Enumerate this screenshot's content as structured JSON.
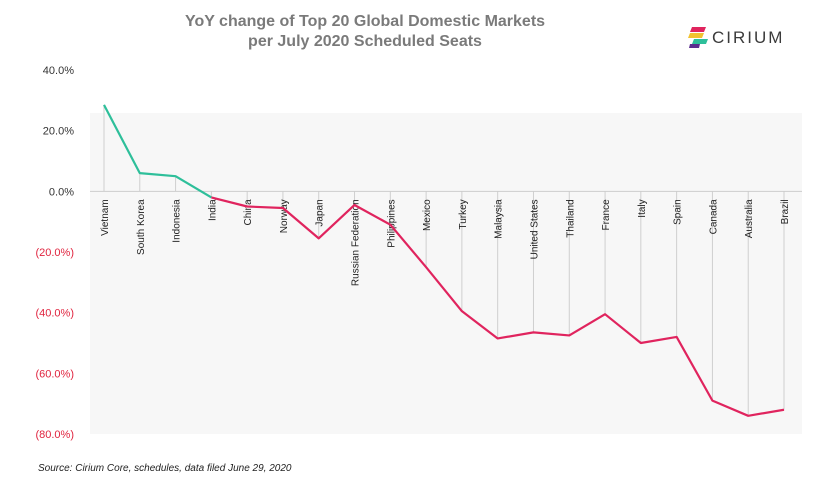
{
  "title_line1": "YoY change of Top 20 Global Domestic Markets",
  "title_line2": "per July 2020 Scheduled Seats",
  "logo_text": "CIRIUM",
  "source": "Source: Cirium Core, schedules, data filed June 29, 2020",
  "colors": {
    "positive": "#2ebf9a",
    "negative": "#e0245e",
    "plot_bg": "#f7f7f7",
    "neg_tick": "#e0243f"
  },
  "chart_data": {
    "type": "line",
    "title": "YoY change of Top 20 Global Domestic Markets per July 2020 Scheduled Seats",
    "categories": [
      "Vietnam",
      "South Korea",
      "Indonesia",
      "India",
      "China",
      "Norway",
      "Japan",
      "Russian Federation",
      "Philippines",
      "Mexico",
      "Turkey",
      "Malaysia",
      "United States",
      "Thailand",
      "France",
      "Italy",
      "Spain",
      "Canada",
      "Australia",
      "Brazil"
    ],
    "series": [
      {
        "values": [
          28.5,
          6.0,
          5.0,
          -2.0,
          -5.0,
          -5.5,
          -15.5,
          -4.5,
          -11.0,
          -25.0,
          -39.5,
          -48.5,
          -46.5,
          -47.5,
          -40.5,
          -50.0,
          -48.0,
          -69.0,
          -74.0,
          -72.0
        ]
      }
    ],
    "yticks": [
      "40.0%",
      "20.0%",
      "0.0%",
      "(20.0%)",
      "(40.0%)",
      "(60.0%)",
      "(80.0%)"
    ],
    "ytick_values": [
      40,
      20,
      0,
      -20,
      -40,
      -60,
      -80
    ],
    "ylim": [
      -80,
      40
    ],
    "xlabel": "",
    "ylabel": "",
    "legend": "none",
    "grid": "vertical drop lines"
  }
}
